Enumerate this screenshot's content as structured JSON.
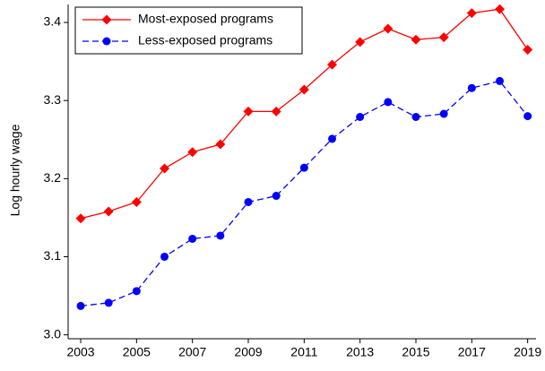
{
  "chart_data": {
    "type": "line",
    "y_label": "Log hourly wage",
    "x": [
      2003,
      2004,
      2005,
      2006,
      2007,
      2008,
      2009,
      2010,
      2011,
      2012,
      2013,
      2014,
      2015,
      2016,
      2017,
      2018,
      2019
    ],
    "series": [
      {
        "name": "Most-exposed programs",
        "color": "#ff0000",
        "marker": "diamond",
        "dash": "solid",
        "values": [
          3.149,
          3.158,
          3.17,
          3.213,
          3.234,
          3.244,
          3.286,
          3.286,
          3.314,
          3.346,
          3.375,
          3.392,
          3.378,
          3.381,
          3.412,
          3.417,
          3.365
        ]
      },
      {
        "name": "Less-exposed programs",
        "color": "#0000ff",
        "marker": "circle",
        "dash": "dashed",
        "values": [
          3.037,
          3.041,
          3.056,
          3.1,
          3.123,
          3.127,
          3.17,
          3.178,
          3.214,
          3.251,
          3.279,
          3.298,
          3.279,
          3.283,
          3.316,
          3.325,
          3.28
        ]
      }
    ],
    "xlim": [
      2002.55,
      2019.3
    ],
    "xticks": [
      2003,
      2005,
      2007,
      2009,
      2011,
      2013,
      2015,
      2017,
      2019
    ],
    "ylim": [
      2.995,
      3.423
    ],
    "yticks": [
      {
        "value": 3,
        "label": "3.0"
      },
      3.1,
      3.2,
      3.3,
      3.4
    ],
    "grid": false,
    "legend": "upper left"
  }
}
